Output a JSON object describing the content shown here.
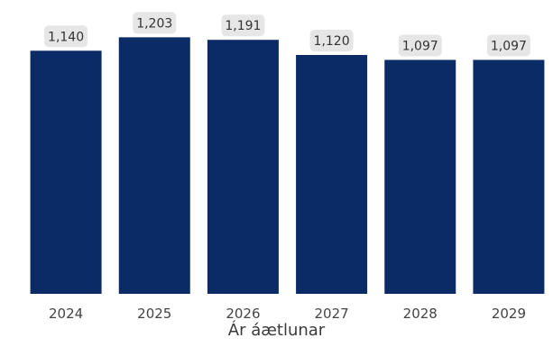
{
  "chart_data": {
    "type": "bar",
    "categories": [
      "2024",
      "2025",
      "2026",
      "2027",
      "2028",
      "2029"
    ],
    "values": [
      1140,
      1203,
      1191,
      1120,
      1097,
      1097
    ],
    "data_labels": [
      "1,140",
      "1,203",
      "1,191",
      "1,120",
      "1,097",
      "1,097"
    ],
    "title": "",
    "xlabel": "Ár áætlunar",
    "ylabel": "",
    "ylim": [
      0,
      1300
    ],
    "grid": false,
    "legend": "none",
    "colors": {
      "bar": "#0b2b66",
      "label_bg": "#e6e6e6",
      "label_text": "#333333",
      "tick_text": "#444444"
    }
  }
}
